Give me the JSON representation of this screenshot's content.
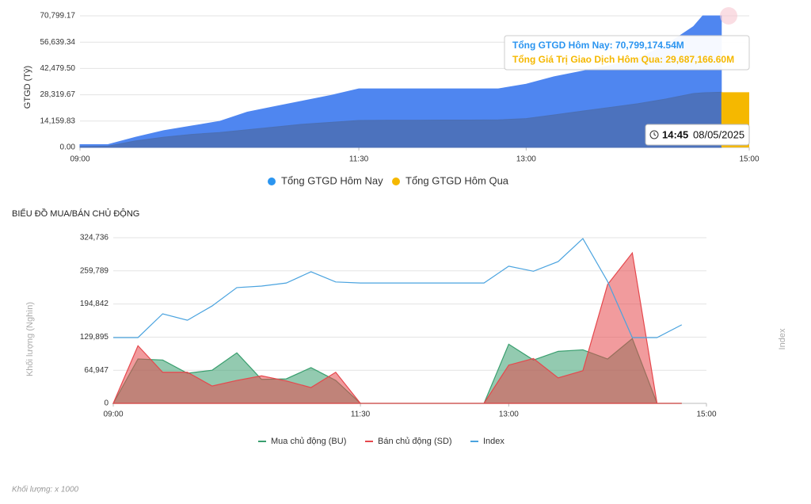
{
  "chart_data": [
    {
      "type": "area",
      "y_label": "GTGD (Tỷ)",
      "x": [
        "09:00",
        "09:15",
        "09:30",
        "09:45",
        "10:00",
        "10:15",
        "10:30",
        "10:45",
        "11:00",
        "11:15",
        "11:30",
        "11:45",
        "12:00",
        "12:15",
        "12:30",
        "12:45",
        "13:00",
        "13:15",
        "13:30",
        "13:45",
        "14:00",
        "14:15",
        "14:30",
        "14:35",
        "14:45"
      ],
      "series": [
        {
          "name": "Tổng GTGD Hôm Nay",
          "color": "#2b95f0",
          "area_color": "#4f86f0",
          "values": [
            1500,
            1500,
            5500,
            9000,
            11500,
            14000,
            19000,
            22000,
            25000,
            28000,
            31500,
            31500,
            31500,
            31500,
            31500,
            31500,
            34000,
            38000,
            41000,
            44000,
            48000,
            55000,
            65000,
            70799,
            70799.17
          ]
        },
        {
          "name": "Tổng GTGD Hôm Qua",
          "color": "#f5b800",
          "area_color": "#4b6fb4",
          "values": [
            500,
            700,
            3500,
            5500,
            7000,
            8000,
            9500,
            11000,
            12500,
            13500,
            14500,
            14600,
            14600,
            14700,
            14700,
            14800,
            15500,
            17500,
            19500,
            21500,
            23500,
            26000,
            29000,
            29400,
            29687.17
          ]
        }
      ],
      "xlim": [
        "09:00",
        "15:00"
      ],
      "xticks": [
        "09:00",
        "11:30",
        "13:00",
        "15:00"
      ],
      "ylim": [
        0,
        70799.17
      ],
      "yticks": [
        {
          "value": 0,
          "label": "0.00"
        },
        {
          "value": 14159.83,
          "label": "14,159.83"
        },
        {
          "value": 28319.67,
          "label": "28,319.67"
        },
        {
          "value": 42479.5,
          "label": "42,479.50"
        },
        {
          "value": 56639.34,
          "label": "56,639.34"
        },
        {
          "value": 70799.17,
          "label": "70,799.17"
        }
      ],
      "grid": true,
      "tooltip": [
        "Tổng GTGD Hôm Nay: 70,799,174.54M",
        "Tổng Giá Trị Giao Dịch Hôm Qua: 29,687,166.60M"
      ],
      "time_badge": {
        "time": "14:45",
        "date": "08/05/2025"
      }
    },
    {
      "type": "area",
      "title": "BIỂU ĐỒ MUA/BÁN CHỦ ĐỘNG",
      "y_label": "Khối lượng (Nghìn)",
      "y2_label": "Index",
      "x": [
        "09:00",
        "09:15",
        "09:30",
        "09:45",
        "10:00",
        "10:15",
        "10:30",
        "10:45",
        "11:00",
        "11:15",
        "11:30",
        "11:45",
        "12:00",
        "12:15",
        "12:30",
        "12:45",
        "13:00",
        "13:15",
        "13:30",
        "13:45",
        "14:00",
        "14:15",
        "14:30",
        "14:45"
      ],
      "series": [
        {
          "name": "Mua chủ động (BU)",
          "color": "#3a9f6f",
          "values": [
            0,
            87000,
            85000,
            59000,
            65000,
            99000,
            47000,
            48000,
            70000,
            45000,
            0,
            0,
            0,
            0,
            0,
            0,
            116000,
            85000,
            102000,
            105000,
            87000,
            127000,
            0,
            0
          ]
        },
        {
          "name": "Bán chủ động (SD)",
          "color": "#e5484d",
          "values": [
            0,
            113000,
            61000,
            61000,
            34000,
            45000,
            54000,
            44000,
            31000,
            61000,
            0,
            0,
            0,
            0,
            0,
            0,
            75000,
            88000,
            50000,
            64000,
            233000,
            295000,
            0,
            0
          ]
        },
        {
          "name": "Index",
          "color": "#4aa3df",
          "line_only": true,
          "values": [
            129000,
            129000,
            175600,
            163000,
            191000,
            227000,
            230000,
            236000,
            258000,
            238000,
            236000,
            236000,
            236000,
            236000,
            236000,
            236000,
            269000,
            259000,
            278000,
            323000,
            239000,
            129000,
            129000,
            154000
          ]
        }
      ],
      "xlim": [
        "09:00",
        "15:00"
      ],
      "xticks": [
        "09:00",
        "11:30",
        "13:00",
        "15:00"
      ],
      "ylim": [
        0,
        324736
      ],
      "yticks": [
        0,
        {
          "value": 64947,
          "label": "64,947"
        },
        {
          "value": 129895,
          "label": "129,895"
        },
        {
          "value": 194842,
          "label": "194,842"
        },
        {
          "value": 259789,
          "label": "259,789"
        },
        {
          "value": 324736,
          "label": "324,736"
        }
      ],
      "grid": true,
      "footnote": "Khối lượng: x 1000"
    }
  ]
}
